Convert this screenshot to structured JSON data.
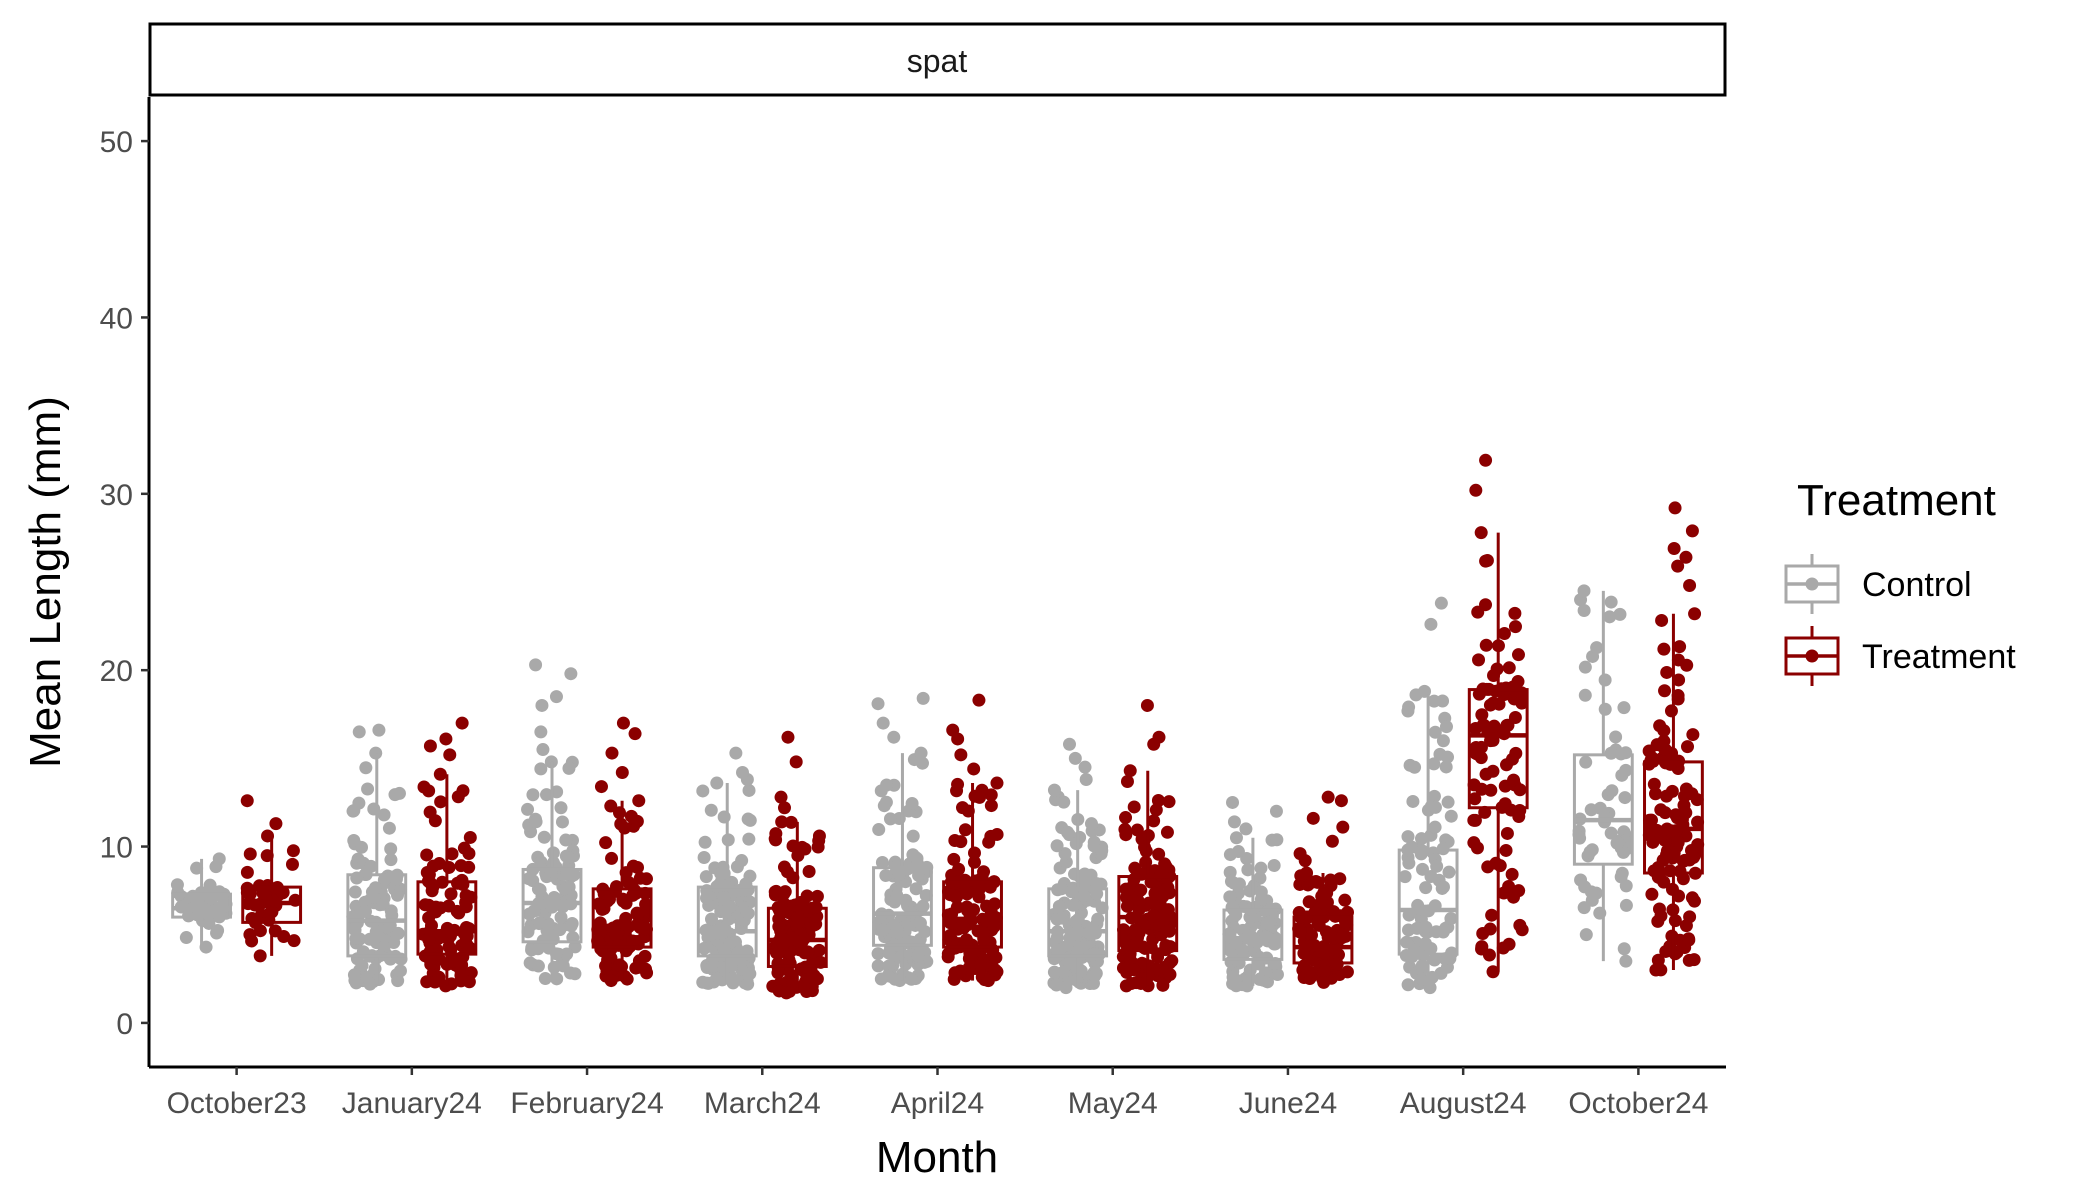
{
  "chart_data": {
    "type": "boxplot",
    "facet_label": "spat",
    "xlabel": "Month",
    "ylabel": "Mean Length (mm)",
    "ylim": [
      -2.5,
      52.5
    ],
    "yticks": [
      0,
      10,
      20,
      30,
      40,
      50
    ],
    "categories": [
      "October23",
      "January24",
      "February24",
      "March24",
      "April24",
      "May24",
      "June24",
      "August24",
      "October24"
    ],
    "legend": {
      "title": "Treatment",
      "position": "right"
    },
    "grid": false,
    "series": [
      {
        "name": "Control",
        "color": "#a9a9a9",
        "boxes": [
          {
            "whisker_low": 4.3,
            "q1": 6.0,
            "median": 6.5,
            "q3": 7.3,
            "whisker_high": 9.3,
            "n": 40
          },
          {
            "whisker_low": 2.2,
            "q1": 3.8,
            "median": 5.8,
            "q3": 8.4,
            "whisker_high": 15.3,
            "n": 100,
            "outliers": [
              16.5,
              16.6
            ]
          },
          {
            "whisker_low": 2.5,
            "q1": 4.6,
            "median": 6.8,
            "q3": 8.7,
            "whisker_high": 14.8,
            "n": 100,
            "outliers": [
              15.5,
              16.5,
              18.0,
              18.5,
              19.8,
              20.3
            ]
          },
          {
            "whisker_low": 2.2,
            "q1": 3.8,
            "median": 5.2,
            "q3": 7.7,
            "whisker_high": 13.6,
            "n": 130,
            "outliers": [
              13.8,
              14.2,
              15.3
            ]
          },
          {
            "whisker_low": 2.4,
            "q1": 4.4,
            "median": 6.2,
            "q3": 8.8,
            "whisker_high": 15.3,
            "n": 130,
            "outliers": [
              16.2,
              17.0,
              18.1,
              18.4
            ]
          },
          {
            "whisker_low": 2.0,
            "q1": 3.8,
            "median": 5.2,
            "q3": 7.6,
            "whisker_high": 13.2,
            "n": 140,
            "outliers": [
              13.8,
              14.5,
              15.0,
              15.8
            ]
          },
          {
            "whisker_low": 2.1,
            "q1": 3.6,
            "median": 4.8,
            "q3": 6.4,
            "whisker_high": 10.5,
            "n": 110,
            "outliers": [
              11.0,
              11.4,
              12.0,
              12.5
            ]
          },
          {
            "whisker_low": 2.0,
            "q1": 3.9,
            "median": 6.4,
            "q3": 9.8,
            "whisker_high": 18.6,
            "n": 90,
            "outliers": [
              18.8,
              22.6,
              23.8
            ]
          },
          {
            "whisker_low": 3.5,
            "q1": 9.0,
            "median": 11.5,
            "q3": 15.2,
            "whisker_high": 24.5,
            "n": 60
          }
        ]
      },
      {
        "name": "Treatment",
        "color": "#8b0000",
        "boxes": [
          {
            "whisker_low": 3.8,
            "q1": 5.7,
            "median": 6.8,
            "q3": 7.7,
            "whisker_high": 10.6,
            "n": 40,
            "outliers": [
              11.3,
              12.6
            ]
          },
          {
            "whisker_low": 2.1,
            "q1": 3.9,
            "median": 5.2,
            "q3": 8.0,
            "whisker_high": 14.1,
            "n": 100,
            "outliers": [
              15.2,
              15.7,
              16.1,
              17.0
            ]
          },
          {
            "whisker_low": 2.4,
            "q1": 4.3,
            "median": 5.5,
            "q3": 7.6,
            "whisker_high": 12.6,
            "n": 100,
            "outliers": [
              13.4,
              14.2,
              15.3,
              16.4,
              17.0
            ]
          },
          {
            "whisker_low": 1.7,
            "q1": 3.2,
            "median": 4.7,
            "q3": 6.5,
            "whisker_high": 11.4,
            "n": 130,
            "outliers": [
              12.2,
              12.8,
              14.8,
              16.2
            ]
          },
          {
            "whisker_low": 2.4,
            "q1": 4.3,
            "median": 5.9,
            "q3": 8.0,
            "whisker_high": 13.6,
            "n": 130,
            "outliers": [
              14.4,
              15.2,
              16.1,
              16.6,
              18.3
            ]
          },
          {
            "whisker_low": 2.1,
            "q1": 4.1,
            "median": 6.0,
            "q3": 8.3,
            "whisker_high": 14.3,
            "n": 140,
            "outliers": [
              15.8,
              16.2,
              18.0
            ]
          },
          {
            "whisker_low": 2.3,
            "q1": 3.4,
            "median": 4.3,
            "q3": 6.0,
            "whisker_high": 8.5,
            "n": 110,
            "outliers": [
              9.2,
              9.6,
              10.3,
              11.1,
              11.6,
              12.6,
              12.8
            ]
          },
          {
            "whisker_low": 2.9,
            "q1": 12.2,
            "median": 16.3,
            "q3": 18.9,
            "whisker_high": 27.8,
            "n": 100,
            "outliers": [
              30.2,
              31.9
            ]
          },
          {
            "whisker_low": 3.0,
            "q1": 8.5,
            "median": 11.0,
            "q3": 14.8,
            "whisker_high": 23.2,
            "n": 120,
            "outliers": [
              24.8,
              25.9,
              26.4,
              26.9,
              27.9,
              29.2
            ]
          }
        ]
      }
    ]
  }
}
